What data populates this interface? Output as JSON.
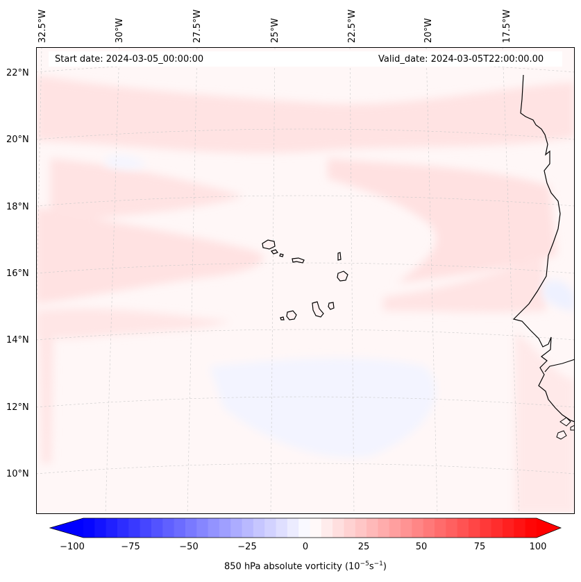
{
  "map": {
    "start_date": "Start date: 2024-03-05_00:00:00",
    "valid_date": "Valid_date: 2024-03-05T22:00:00.00",
    "longitude_labels": [
      "32.5°W",
      "30°W",
      "27.5°W",
      "25°W",
      "22.5°W",
      "20°W",
      "17.5°W"
    ],
    "latitude_labels": [
      "22°N",
      "20°N",
      "18°N",
      "16°N",
      "14°N",
      "12°N",
      "10°N"
    ],
    "field": "850 hPa absolute vorticity",
    "colors": {
      "background": "#fff7f7",
      "light_red": "#ffe4e4",
      "light_blue": "#f3f5ff",
      "coastline": "#000000"
    }
  },
  "colorbar": {
    "ticks": [
      "−100",
      "−75",
      "−50",
      "−25",
      "0",
      "25",
      "50",
      "75",
      "100"
    ],
    "label_prefix": "850 hPa absolute vorticity (10",
    "label_exp1": "−5",
    "label_mid": "s",
    "label_exp2": "−1",
    "label_suffix": ")",
    "min_color": "#0000ff",
    "mid_color": "#ffffff",
    "max_color": "#ff0000"
  }
}
